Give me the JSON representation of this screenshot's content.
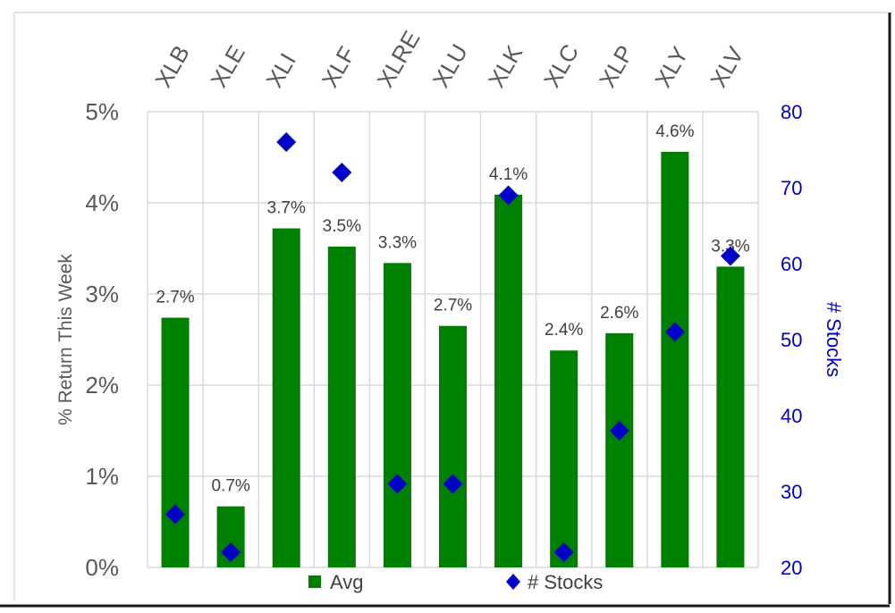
{
  "chart_data": {
    "type": "bar",
    "categories": [
      "XLB",
      "XLE",
      "XLI",
      "XLF",
      "XLRE",
      "XLU",
      "XLK",
      "XLC",
      "XLP",
      "XLY",
      "XLV"
    ],
    "series": [
      {
        "name": "Avg",
        "axis": "left",
        "mark": "bar",
        "color": "#008000",
        "values": [
          2.74,
          0.67,
          3.72,
          3.52,
          3.34,
          2.65,
          4.09,
          2.38,
          2.57,
          4.56,
          3.3
        ],
        "labels": [
          "2.7%",
          "0.7%",
          "3.7%",
          "3.5%",
          "3.3%",
          "2.7%",
          "4.1%",
          "2.4%",
          "2.6%",
          "4.6%",
          "3.3%"
        ]
      },
      {
        "name": "# Stocks",
        "axis": "right",
        "mark": "diamond",
        "color": "#0000c8",
        "values": [
          27,
          22,
          76,
          72,
          31,
          31,
          69,
          22,
          38,
          51,
          61
        ]
      }
    ],
    "ylabel": "% Return This Week",
    "y2label": "# Stocks",
    "ylim": [
      0,
      5
    ],
    "y2lim": [
      20,
      80
    ],
    "yticks": [
      "0%",
      "1%",
      "2%",
      "3%",
      "4%",
      "5%"
    ],
    "y2ticks": [
      "20",
      "30",
      "40",
      "50",
      "60",
      "70",
      "80"
    ],
    "grid": true,
    "legend_position": "bottom",
    "legend": [
      "Avg",
      "# Stocks"
    ]
  }
}
